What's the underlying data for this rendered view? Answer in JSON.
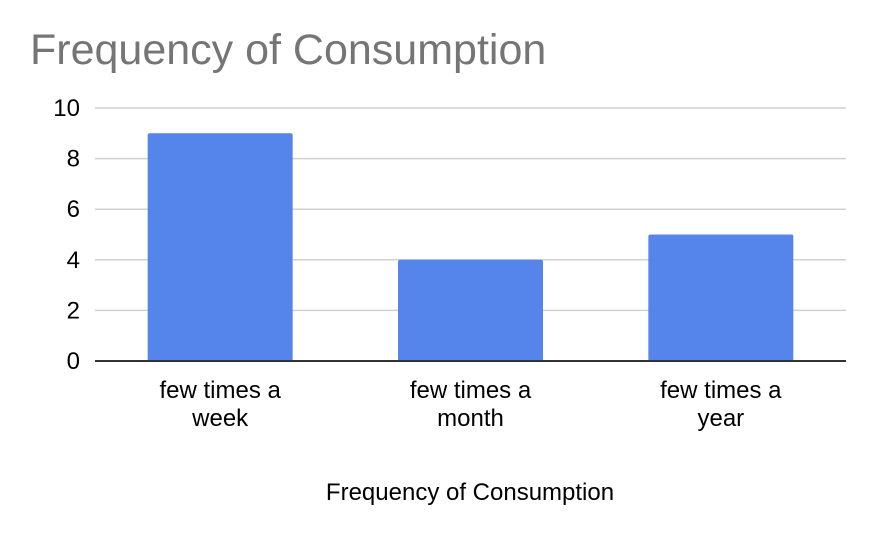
{
  "chart_data": {
    "type": "bar",
    "title": "Frequency of Consumption",
    "xlabel": "Frequency of Consumption",
    "ylabel": "",
    "categories": [
      [
        "few times a",
        "week"
      ],
      [
        "few times a",
        "month"
      ],
      [
        "few times a",
        "year"
      ]
    ],
    "values": [
      9,
      4,
      5
    ],
    "ylim": [
      0,
      10
    ],
    "yticks": [
      0,
      2,
      4,
      6,
      8,
      10
    ],
    "grid": true,
    "legend": "none",
    "colors": {
      "bar": "#5585ea",
      "grid": "#d0d0d0",
      "axis": "#333333",
      "title": "#757575"
    }
  }
}
